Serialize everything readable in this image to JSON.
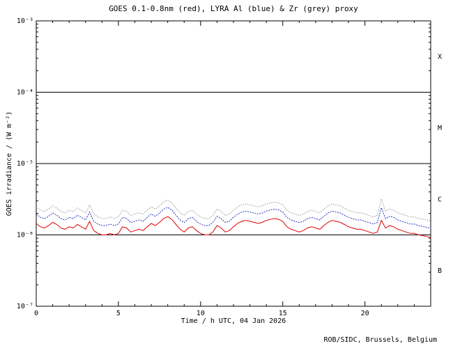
{
  "footer": {
    "attribution": "ROB/SIDC, Brussels, Belgium"
  },
  "chart_data": {
    "type": "line",
    "title": "GOES 0.1-0.8nm (red), LYRA Al (blue) & Zr (grey) proxy",
    "xlabel": "Time / h UTC, 04 Jan 2026",
    "ylabel": "GOES irradiance / (W m⁻²)",
    "xlim": [
      0,
      24
    ],
    "x_major_ticks": [
      0,
      5,
      10,
      15,
      20
    ],
    "x_minor_step": 1,
    "ylim": [
      1e-07,
      0.001
    ],
    "y_scale": "log",
    "grid": false,
    "legend_position": "in-title",
    "y_ticks": [
      {
        "value": 1e-07,
        "label": "10⁻⁷"
      },
      {
        "value": 1e-06,
        "label": "10⁻⁶"
      },
      {
        "value": 1e-05,
        "label": "10⁻⁵"
      },
      {
        "value": 0.0001,
        "label": "10⁻⁴"
      },
      {
        "value": 0.001,
        "label": "10⁻³"
      }
    ],
    "class_lines": [
      0.0001,
      1e-05,
      1e-06
    ],
    "flare_classes": [
      {
        "label": "X",
        "value": 0.000316
      },
      {
        "label": "M",
        "value": 3.16e-05
      },
      {
        "label": "C",
        "value": 3.16e-06
      },
      {
        "label": "B",
        "value": 3.16e-07
      }
    ],
    "x_start": 0,
    "x_step": 0.25,
    "unit_scale": 1e-06,
    "series": [
      {
        "key": "goes",
        "name": "GOES 0.1-0.8nm (red)",
        "color": "#dd0000",
        "dash": "",
        "values": [
          1.45,
          1.3,
          1.25,
          1.35,
          1.5,
          1.4,
          1.25,
          1.2,
          1.3,
          1.25,
          1.4,
          1.3,
          1.2,
          1.55,
          1.15,
          1.05,
          1.0,
          1.0,
          1.05,
          1.0,
          1.05,
          1.3,
          1.25,
          1.1,
          1.15,
          1.2,
          1.15,
          1.3,
          1.45,
          1.35,
          1.5,
          1.7,
          1.8,
          1.65,
          1.4,
          1.2,
          1.1,
          1.25,
          1.3,
          1.15,
          1.05,
          1.0,
          1.0,
          1.1,
          1.35,
          1.25,
          1.1,
          1.15,
          1.3,
          1.45,
          1.55,
          1.6,
          1.55,
          1.5,
          1.45,
          1.5,
          1.6,
          1.65,
          1.7,
          1.65,
          1.55,
          1.3,
          1.2,
          1.15,
          1.1,
          1.15,
          1.25,
          1.3,
          1.25,
          1.2,
          1.35,
          1.5,
          1.6,
          1.55,
          1.5,
          1.4,
          1.3,
          1.25,
          1.2,
          1.2,
          1.15,
          1.1,
          1.05,
          1.1,
          1.6,
          1.25,
          1.35,
          1.3,
          1.2,
          1.15,
          1.1,
          1.05,
          1.05,
          1.0,
          0.98,
          0.95,
          0.92
        ]
      },
      {
        "key": "lyra-al",
        "name": "LYRA Al proxy (blue)",
        "color": "#2233bb",
        "dash": "2,1.5",
        "values": [
          1.96,
          1.76,
          1.69,
          1.82,
          2.03,
          1.89,
          1.69,
          1.62,
          1.76,
          1.69,
          1.89,
          1.76,
          1.62,
          2.09,
          1.55,
          1.42,
          1.35,
          1.35,
          1.42,
          1.35,
          1.42,
          1.76,
          1.69,
          1.49,
          1.55,
          1.62,
          1.55,
          1.76,
          1.96,
          1.82,
          2.03,
          2.3,
          2.43,
          2.23,
          1.89,
          1.62,
          1.49,
          1.69,
          1.76,
          1.55,
          1.42,
          1.35,
          1.35,
          1.49,
          1.82,
          1.69,
          1.49,
          1.55,
          1.76,
          1.96,
          2.09,
          2.16,
          2.09,
          2.03,
          1.96,
          2.03,
          2.16,
          2.23,
          2.3,
          2.23,
          2.09,
          1.76,
          1.62,
          1.55,
          1.49,
          1.55,
          1.69,
          1.76,
          1.69,
          1.62,
          1.82,
          2.03,
          2.16,
          2.09,
          2.03,
          1.89,
          1.76,
          1.69,
          1.62,
          1.62,
          1.55,
          1.49,
          1.42,
          1.49,
          2.4,
          1.69,
          1.82,
          1.76,
          1.62,
          1.55,
          1.49,
          1.42,
          1.42,
          1.35,
          1.32,
          1.28,
          1.24
        ]
      },
      {
        "key": "lyra-zr",
        "name": "LYRA Zr proxy (grey)",
        "color": "#9a9a9a",
        "dash": "1.5,1.5",
        "values": [
          2.47,
          2.21,
          2.13,
          2.3,
          2.55,
          2.38,
          2.13,
          2.04,
          2.21,
          2.13,
          2.38,
          2.21,
          2.04,
          2.64,
          1.96,
          1.79,
          1.7,
          1.7,
          1.79,
          1.7,
          1.79,
          2.21,
          2.13,
          1.87,
          1.96,
          2.04,
          1.96,
          2.21,
          2.47,
          2.3,
          2.55,
          2.89,
          3.06,
          2.81,
          2.38,
          2.04,
          1.87,
          2.13,
          2.21,
          1.96,
          1.79,
          1.7,
          1.7,
          1.87,
          2.3,
          2.13,
          1.87,
          1.96,
          2.21,
          2.47,
          2.64,
          2.72,
          2.64,
          2.55,
          2.47,
          2.55,
          2.72,
          2.81,
          2.89,
          2.81,
          2.64,
          2.21,
          2.04,
          1.96,
          1.87,
          1.96,
          2.13,
          2.21,
          2.13,
          2.04,
          2.3,
          2.55,
          2.72,
          2.64,
          2.55,
          2.38,
          2.21,
          2.13,
          2.04,
          2.04,
          1.96,
          1.87,
          1.79,
          1.87,
          3.2,
          2.13,
          2.3,
          2.21,
          2.04,
          1.96,
          1.87,
          1.79,
          1.79,
          1.7,
          1.67,
          1.62,
          1.56
        ]
      }
    ]
  }
}
